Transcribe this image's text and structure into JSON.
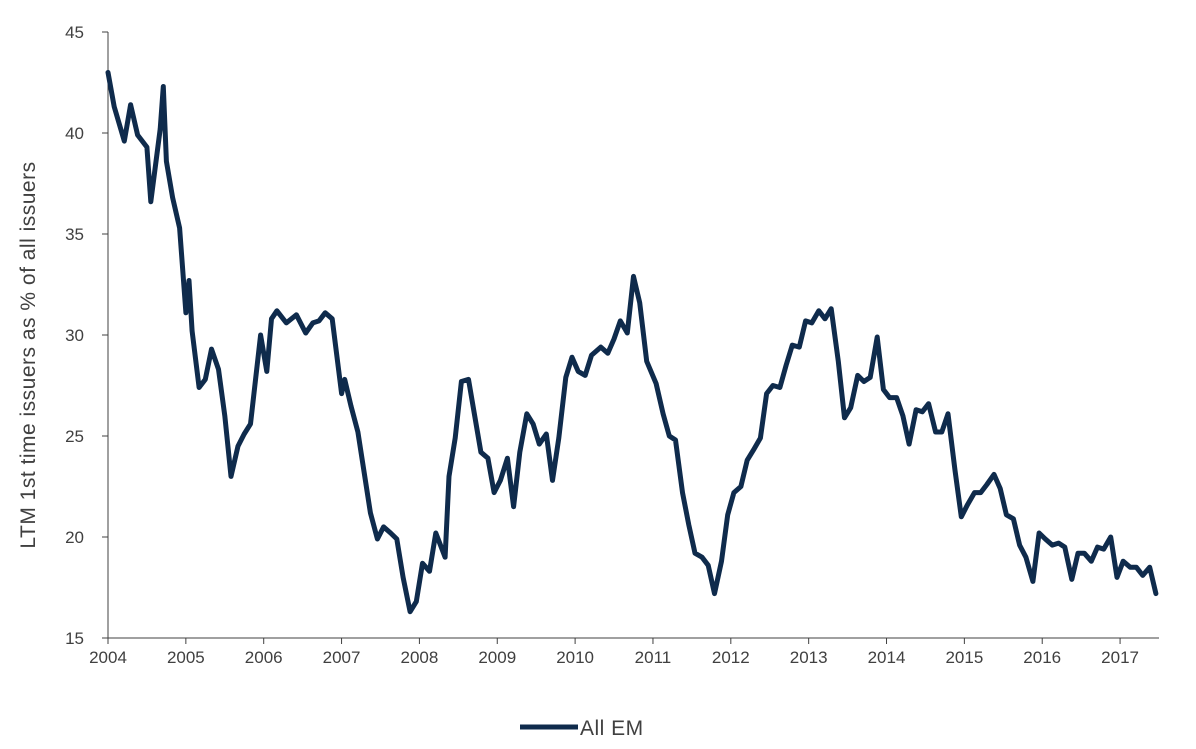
{
  "chart_data": {
    "type": "line",
    "title": "",
    "xlabel": "",
    "ylabel": "LTM 1st time issuers as % of all issuers",
    "ylim": [
      15,
      45
    ],
    "yticks": [
      "15",
      "20",
      "25",
      "30",
      "35",
      "40",
      "45"
    ],
    "xlim": [
      2004,
      2017.5
    ],
    "xticks": [
      "2004",
      "2005",
      "2006",
      "2007",
      "2008",
      "2009",
      "2010",
      "2011",
      "2012",
      "2013",
      "2014",
      "2015",
      "2016",
      "2017"
    ],
    "grid": false,
    "legend_position": "bottom",
    "series": [
      {
        "name": "All EM",
        "color": "#0f2b4c",
        "x": [
          2004.0,
          2004.08,
          2004.21,
          2004.29,
          2004.38,
          2004.5,
          2004.55,
          2004.67,
          2004.71,
          2004.75,
          2004.83,
          2004.92,
          2005.0,
          2005.04,
          2005.08,
          2005.17,
          2005.25,
          2005.33,
          2005.42,
          2005.5,
          2005.58,
          2005.67,
          2005.75,
          2005.83,
          2005.96,
          2006.04,
          2006.1,
          2006.17,
          2006.29,
          2006.42,
          2006.54,
          2006.63,
          2006.71,
          2006.79,
          2006.88,
          2007.0,
          2007.04,
          2007.12,
          2007.21,
          2007.37,
          2007.46,
          2007.54,
          2007.63,
          2007.71,
          2007.79,
          2007.88,
          2007.96,
          2008.04,
          2008.13,
          2008.21,
          2008.33,
          2008.38,
          2008.46,
          2008.54,
          2008.63,
          2008.71,
          2008.79,
          2008.88,
          2008.96,
          2009.04,
          2009.13,
          2009.21,
          2009.29,
          2009.38,
          2009.46,
          2009.54,
          2009.63,
          2009.71,
          2009.79,
          2009.88,
          2009.96,
          2010.04,
          2010.13,
          2010.21,
          2010.33,
          2010.42,
          2010.5,
          2010.58,
          2010.67,
          2010.75,
          2010.83,
          2010.92,
          2011.04,
          2011.13,
          2011.21,
          2011.29,
          2011.38,
          2011.46,
          2011.54,
          2011.63,
          2011.71,
          2011.79,
          2011.88,
          2011.96,
          2012.04,
          2012.13,
          2012.21,
          2012.29,
          2012.38,
          2012.46,
          2012.54,
          2012.63,
          2012.71,
          2012.79,
          2012.88,
          2012.96,
          2013.04,
          2013.13,
          2013.21,
          2013.29,
          2013.38,
          2013.46,
          2013.54,
          2013.63,
          2013.71,
          2013.79,
          2013.88,
          2013.96,
          2014.04,
          2014.13,
          2014.21,
          2014.29,
          2014.38,
          2014.46,
          2014.54,
          2014.63,
          2014.71,
          2014.79,
          2014.88,
          2014.96,
          2015.04,
          2015.13,
          2015.21,
          2015.29,
          2015.38,
          2015.46,
          2015.54,
          2015.63,
          2015.71,
          2015.79,
          2015.88,
          2015.96,
          2016.04,
          2016.13,
          2016.21,
          2016.29,
          2016.38,
          2016.46,
          2016.54,
          2016.63,
          2016.71,
          2016.79,
          2016.88,
          2016.96,
          2017.04,
          2017.13,
          2017.21,
          2017.29,
          2017.38,
          2017.46
        ],
        "values": [
          43.0,
          41.3,
          39.6,
          41.4,
          39.9,
          39.3,
          36.6,
          40.2,
          42.3,
          38.6,
          36.8,
          35.3,
          31.1,
          32.7,
          30.2,
          27.4,
          27.8,
          29.3,
          28.3,
          26.0,
          23.0,
          24.5,
          25.1,
          25.6,
          30.0,
          28.2,
          30.8,
          31.2,
          30.6,
          31.0,
          30.1,
          30.6,
          30.7,
          31.1,
          30.8,
          27.1,
          27.8,
          26.5,
          25.2,
          21.2,
          19.9,
          20.5,
          20.2,
          19.9,
          18.0,
          16.3,
          16.8,
          18.7,
          18.3,
          20.2,
          19.0,
          23.0,
          24.9,
          27.7,
          27.8,
          26.0,
          24.2,
          23.9,
          22.2,
          22.8,
          23.9,
          21.5,
          24.2,
          26.1,
          25.6,
          24.6,
          25.1,
          22.8,
          24.9,
          27.9,
          28.9,
          28.2,
          28.0,
          29.0,
          29.4,
          29.1,
          29.8,
          30.7,
          30.1,
          32.9,
          31.6,
          28.7,
          27.6,
          26.1,
          25.0,
          24.8,
          22.2,
          20.6,
          19.2,
          19.0,
          18.6,
          17.2,
          18.8,
          21.1,
          22.2,
          22.5,
          23.8,
          24.3,
          24.9,
          27.1,
          27.5,
          27.4,
          28.5,
          29.5,
          29.4,
          30.7,
          30.6,
          31.2,
          30.8,
          31.3,
          28.7,
          25.9,
          26.4,
          28.0,
          27.7,
          27.9,
          29.9,
          27.3,
          26.9,
          26.9,
          26.0,
          24.6,
          26.3,
          26.2,
          26.6,
          25.2,
          25.2,
          26.1,
          23.3,
          21.0,
          21.6,
          22.2,
          22.2,
          22.6,
          23.1,
          22.4,
          21.1,
          20.9,
          19.6,
          19.0,
          17.8,
          20.2,
          19.9,
          19.6,
          19.7,
          19.5,
          17.9,
          19.2,
          19.2,
          18.8,
          19.5,
          19.4,
          20.0,
          18.0,
          18.8,
          18.5,
          18.5,
          18.1,
          18.5,
          17.2
        ]
      }
    ]
  }
}
